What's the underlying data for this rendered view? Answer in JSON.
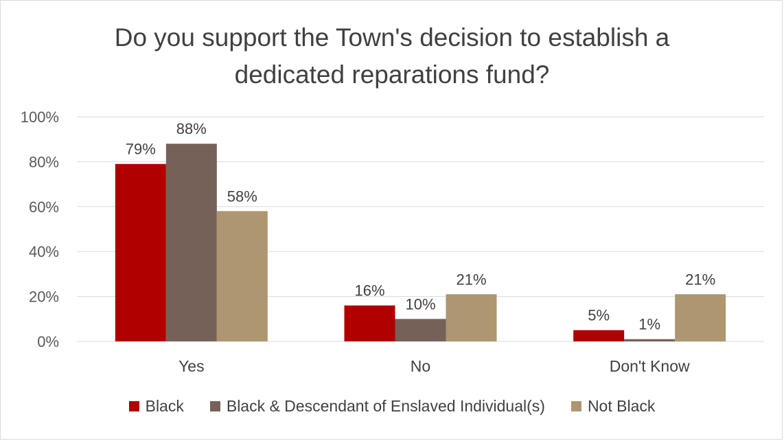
{
  "chart_data": {
    "type": "bar",
    "title_lines": [
      "Do you support the Town's decision to establish a",
      "dedicated reparations fund?"
    ],
    "categories": [
      "Yes",
      "No",
      "Don't Know"
    ],
    "series": [
      {
        "name": "Black",
        "color": "#b00000",
        "values": [
          79,
          16,
          5
        ],
        "labels": [
          "79%",
          "16%",
          "5%"
        ]
      },
      {
        "name": "Black & Descendant of Enslaved Individual(s)",
        "color": "#766158",
        "values": [
          88,
          10,
          1
        ],
        "labels": [
          "88%",
          "10%",
          "1%"
        ]
      },
      {
        "name": "Not Black",
        "color": "#ad9670",
        "values": [
          58,
          21,
          21
        ],
        "labels": [
          "58%",
          "21%",
          "21%"
        ]
      }
    ],
    "ylim": [
      0,
      100
    ],
    "yticks": [
      "0%",
      "20%",
      "40%",
      "60%",
      "80%",
      "100%"
    ],
    "grid": true,
    "legend_position": "bottom"
  }
}
